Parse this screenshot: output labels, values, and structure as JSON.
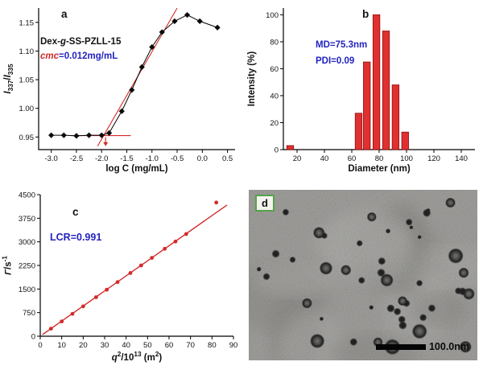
{
  "figure_bg": "#ffffff",
  "accent_red": "#d42a2a",
  "accent_blue": "#2323c0",
  "chart_data": [
    {
      "panel_label": "a",
      "type": "line",
      "xlabel": "log C (mg/mL)",
      "ylabel_segments": [
        {
          "t": "I",
          "i": true
        },
        {
          "t": "337",
          "sub": true
        },
        {
          "t": "/"
        },
        {
          "t": "I",
          "i": true
        },
        {
          "t": "335",
          "sub": true
        }
      ],
      "xlim": [
        -3.25,
        0.65
      ],
      "ylim": [
        0.928,
        1.175
      ],
      "xtick_labels": [
        "-3.0",
        "-2.5",
        "-2.0",
        "-1.5",
        "-1.0",
        "-0.5",
        "0.0",
        "0.5"
      ],
      "ytick_labels": [
        "0.95",
        "1.00",
        "1.05",
        "1.10",
        "1.15"
      ],
      "x": [
        -3.0,
        -2.75,
        -2.5,
        -2.25,
        -2.0,
        -1.85,
        -1.6,
        -1.4,
        -1.2,
        -1.0,
        -0.8,
        -0.55,
        -0.3,
        -0.05,
        0.3
      ],
      "y": [
        0.953,
        0.953,
        0.952,
        0.953,
        0.953,
        0.957,
        0.995,
        1.032,
        1.072,
        1.107,
        1.133,
        1.152,
        1.163,
        1.152,
        1.141
      ],
      "fit_color": "#d42a2a",
      "fit_lines": [
        {
          "x1": -2.6,
          "y1": 0.9525,
          "x2": -1.42,
          "y2": 0.9525
        },
        {
          "x1": -2.08,
          "y1": 0.934,
          "x2": -0.5,
          "y2": 1.175
        }
      ],
      "arrow": {
        "x": -1.92,
        "y_from": 0.9495,
        "y_to": 0.934
      },
      "annotations": [
        {
          "segments": [
            {
              "t": "Dex-"
            },
            {
              "t": "g",
              "i": true
            },
            {
              "t": "-SS-PZLL-15"
            }
          ]
        },
        {
          "segments": [
            {
              "t": "cmc",
              "i": true,
              "c": "#d42a2a"
            },
            {
              "t": "=0.012mg/mL",
              "c": "#2323c0"
            }
          ]
        }
      ]
    },
    {
      "panel_label": "b",
      "type": "bar",
      "xlabel": "Diameter (nm)",
      "ylabel": "Intensity (%)",
      "xlim": [
        10,
        150
      ],
      "ylim": [
        0,
        105
      ],
      "xtick_labels": [
        "20",
        "40",
        "60",
        "80",
        "100",
        "120",
        "140"
      ],
      "ytick_labels": [
        "0",
        "20",
        "40",
        "60",
        "80",
        "100"
      ],
      "bar_width_nm": 5,
      "bars": [
        {
          "x": 15,
          "h": 3
        },
        {
          "x": 65,
          "h": 27
        },
        {
          "x": 71,
          "h": 65
        },
        {
          "x": 78,
          "h": 100
        },
        {
          "x": 85,
          "h": 88
        },
        {
          "x": 92,
          "h": 48
        },
        {
          "x": 99,
          "h": 13
        }
      ],
      "bar_fill": "#e03030",
      "bar_edge": "#8c1010",
      "annotations": [
        {
          "text": "MD=75.3nm"
        },
        {
          "text": "PDI=0.09"
        }
      ],
      "annotation_color": "#2323c0"
    },
    {
      "panel_label": "c",
      "type": "scatter",
      "xlabel_segments": [
        {
          "t": "q",
          "i": true
        },
        {
          "t": "2",
          "sup": true
        },
        {
          "t": "/10"
        },
        {
          "t": "13",
          "sup": true
        },
        {
          "t": " (m"
        },
        {
          "t": "2",
          "sup": true
        },
        {
          "t": ")"
        }
      ],
      "ylabel_segments": [
        {
          "t": "Γ",
          "i": true
        },
        {
          "t": "/s"
        },
        {
          "t": "-1",
          "sup": true
        }
      ],
      "xlim": [
        0,
        90
      ],
      "ylim": [
        0,
        4500
      ],
      "xtick_labels": [
        "0",
        "10",
        "20",
        "30",
        "40",
        "50",
        "60",
        "70",
        "80",
        "90"
      ],
      "ytick_labels": [
        "0",
        "750",
        "1500",
        "2250",
        "3000",
        "3750",
        "4500"
      ],
      "x": [
        5,
        10,
        15,
        20,
        26,
        31,
        36,
        42,
        47,
        52,
        58,
        63,
        68,
        82
      ],
      "y": [
        240,
        470,
        710,
        950,
        1240,
        1480,
        1720,
        2010,
        2250,
        2490,
        2780,
        3010,
        3250,
        4250
      ],
      "fit_line": {
        "x1": 1,
        "y1": 50,
        "x2": 87,
        "y2": 4170
      },
      "point_color": "#d42a2a",
      "line_color": "#d42a2a",
      "annotations": [
        {
          "text": "LCR=0.991"
        }
      ],
      "annotation_color": "#2323c0"
    },
    {
      "panel_label": "d",
      "type": "tem-image",
      "scale_bar_label": "100.0nm",
      "label_box_border": "#55a24b"
    }
  ]
}
